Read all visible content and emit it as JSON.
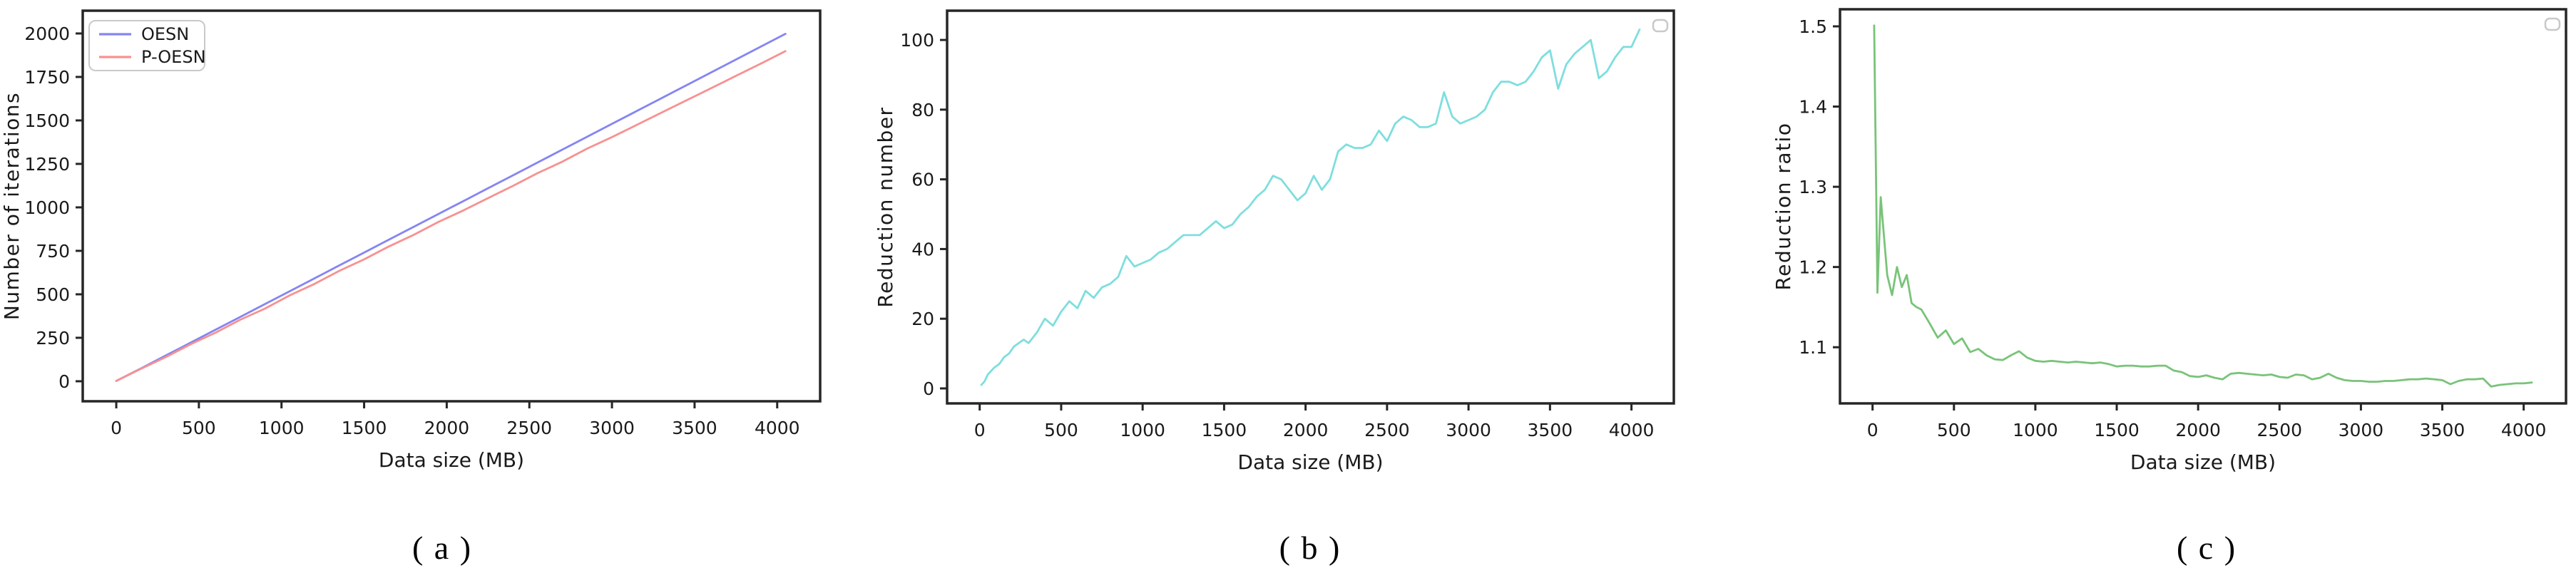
{
  "figure": {
    "background": "#ffffff",
    "captions": [
      {
        "label": "( a )"
      },
      {
        "label": "( b )"
      },
      {
        "label": "( c )"
      }
    ]
  },
  "colors": {
    "oesn_blue": "#8585f2",
    "p_oesn_red": "#f79191",
    "reduction_cyan": "#7fdede",
    "ratio_green": "#79c379",
    "axis": "#262626",
    "text": "#1a1a1a",
    "legend_border": "#c9c9c9"
  },
  "chart_data": [
    {
      "type": "line",
      "title": "",
      "xlabel": "Data size (MB)",
      "ylabel": "Number of iterations",
      "xlim": [
        -203,
        4260
      ],
      "ylim": [
        -115,
        2131
      ],
      "xticks": [
        0,
        500,
        1000,
        1500,
        2000,
        2500,
        3000,
        3500,
        4000
      ],
      "xtick_labels": [
        "0",
        "500",
        "1000",
        "1500",
        "2000",
        "2500",
        "3000",
        "3500",
        "4000"
      ],
      "yticks": [
        0,
        250,
        500,
        750,
        1000,
        1250,
        1500,
        1750,
        2000
      ],
      "ytick_labels": [
        "0",
        "250",
        "500",
        "750",
        "1000",
        "1250",
        "1500",
        "1750",
        "2000"
      ],
      "grid": false,
      "legend": {
        "visible": true,
        "empty": false,
        "position": "upper-left"
      },
      "x": [
        0,
        150,
        300,
        450,
        600,
        750,
        900,
        1050,
        1200,
        1350,
        1500,
        1650,
        1800,
        1950,
        2100,
        2250,
        2400,
        2550,
        2700,
        2850,
        3000,
        3150,
        3300,
        3450,
        3600,
        3750,
        3900,
        4050
      ],
      "series": [
        {
          "name": "OESN",
          "color": "#8585f2",
          "values": [
            2,
            74,
            148,
            222,
            296,
            370,
            444,
            518,
            592,
            666,
            740,
            814,
            888,
            962,
            1036,
            1110,
            1184,
            1258,
            1332,
            1406,
            1480,
            1554,
            1628,
            1702,
            1776,
            1850,
            1924,
            1998
          ]
        },
        {
          "name": "P-OESN",
          "color": "#f79191",
          "values": [
            2,
            72,
            139,
            213,
            279,
            354,
            418,
            494,
            560,
            635,
            701,
            775,
            842,
            916,
            982,
            1053,
            1123,
            1197,
            1263,
            1338,
            1404,
            1474,
            1545,
            1615,
            1685,
            1756,
            1826,
            1898
          ]
        }
      ]
    },
    {
      "type": "line",
      "title": "",
      "xlabel": "Data size (MB)",
      "ylabel": "Reduction number",
      "xlim": [
        -200,
        4260
      ],
      "ylim": [
        -4.3,
        108.4
      ],
      "xticks": [
        0,
        500,
        1000,
        1500,
        2000,
        2500,
        3000,
        3500,
        4000
      ],
      "xtick_labels": [
        "0",
        "500",
        "1000",
        "1500",
        "2000",
        "2500",
        "3000",
        "3500",
        "4000"
      ],
      "yticks": [
        0,
        20,
        40,
        60,
        80,
        100
      ],
      "ytick_labels": [
        "0",
        "20",
        "40",
        "60",
        "80",
        "100"
      ],
      "grid": false,
      "legend": {
        "visible": true,
        "empty": true,
        "position": "upper-right"
      },
      "x": [
        10,
        30,
        50,
        90,
        120,
        150,
        180,
        210,
        240,
        270,
        300,
        350,
        400,
        450,
        500,
        550,
        600,
        650,
        700,
        750,
        800,
        850,
        900,
        950,
        1000,
        1050,
        1100,
        1150,
        1200,
        1250,
        1300,
        1350,
        1400,
        1450,
        1500,
        1550,
        1600,
        1650,
        1700,
        1750,
        1800,
        1850,
        1900,
        1950,
        2000,
        2050,
        2100,
        2150,
        2200,
        2250,
        2300,
        2350,
        2400,
        2450,
        2500,
        2550,
        2600,
        2650,
        2700,
        2750,
        2800,
        2850,
        2900,
        2950,
        3000,
        3050,
        3100,
        3150,
        3200,
        3250,
        3300,
        3350,
        3400,
        3450,
        3500,
        3550,
        3600,
        3650,
        3700,
        3750,
        3800,
        3850,
        3900,
        3950,
        4000,
        4050
      ],
      "series": [
        {
          "name": "Reduction number",
          "color": "#7fdede",
          "values": [
            1,
            2,
            4,
            6,
            7,
            9,
            10,
            12,
            13,
            14,
            13,
            16,
            20,
            18,
            22,
            25,
            23,
            28,
            26,
            29,
            30,
            32,
            38,
            35,
            36,
            37,
            39,
            40,
            42,
            44,
            44,
            44,
            46,
            48,
            46,
            47,
            50,
            52,
            55,
            57,
            61,
            60,
            57,
            54,
            56,
            61,
            57,
            60,
            68,
            70,
            69,
            69,
            70,
            74,
            71,
            76,
            78,
            77,
            75,
            75,
            76,
            85,
            78,
            76,
            77,
            78,
            80,
            85,
            88,
            88,
            87,
            88,
            91,
            95,
            97,
            86,
            93,
            96,
            98,
            100,
            89,
            91,
            95,
            98,
            98,
            103
          ]
        }
      ]
    },
    {
      "type": "line",
      "title": "",
      "xlabel": "Data size (MB)",
      "ylabel": "Reduction ratio",
      "xlim": [
        -200,
        4260
      ],
      "ylim": [
        1.03,
        1.5213
      ],
      "xticks": [
        0,
        500,
        1000,
        1500,
        2000,
        2500,
        3000,
        3500,
        4000
      ],
      "xtick_labels": [
        "0",
        "500",
        "1000",
        "1500",
        "2000",
        "2500",
        "3000",
        "3500",
        "4000"
      ],
      "yticks": [
        1.1,
        1.2,
        1.3,
        1.4,
        1.5
      ],
      "ytick_labels": [
        "1.1",
        "1.2",
        "1.3",
        "1.4",
        "1.5"
      ],
      "grid": false,
      "legend": {
        "visible": true,
        "empty": true,
        "position": "upper-right"
      },
      "x": [
        10,
        30,
        50,
        90,
        120,
        150,
        180,
        210,
        240,
        270,
        300,
        350,
        400,
        450,
        500,
        550,
        600,
        650,
        700,
        750,
        800,
        850,
        900,
        950,
        1000,
        1050,
        1100,
        1150,
        1200,
        1250,
        1300,
        1350,
        1400,
        1450,
        1500,
        1550,
        1600,
        1650,
        1700,
        1750,
        1800,
        1850,
        1900,
        1950,
        2000,
        2050,
        2100,
        2150,
        2200,
        2250,
        2300,
        2350,
        2400,
        2450,
        2500,
        2550,
        2600,
        2650,
        2700,
        2750,
        2800,
        2850,
        2900,
        2950,
        3000,
        3050,
        3100,
        3150,
        3200,
        3250,
        3300,
        3350,
        3400,
        3450,
        3500,
        3550,
        3600,
        3650,
        3700,
        3750,
        3800,
        3850,
        3900,
        3950,
        4000,
        4050
      ],
      "series": [
        {
          "name": "Reduction ratio",
          "color": "#79c379",
          "values": [
            1.501,
            1.168,
            1.287,
            1.19,
            1.165,
            1.2,
            1.175,
            1.19,
            1.155,
            1.15,
            1.147,
            1.13,
            1.112,
            1.121,
            1.104,
            1.111,
            1.094,
            1.098,
            1.09,
            1.085,
            1.084,
            1.09,
            1.095,
            1.087,
            1.083,
            1.082,
            1.083,
            1.082,
            1.081,
            1.082,
            1.081,
            1.08,
            1.081,
            1.079,
            1.076,
            1.077,
            1.077,
            1.076,
            1.076,
            1.077,
            1.077,
            1.071,
            1.069,
            1.064,
            1.063,
            1.065,
            1.062,
            1.06,
            1.067,
            1.068,
            1.067,
            1.066,
            1.065,
            1.066,
            1.063,
            1.062,
            1.066,
            1.065,
            1.06,
            1.062,
            1.067,
            1.062,
            1.059,
            1.058,
            1.058,
            1.057,
            1.057,
            1.058,
            1.058,
            1.059,
            1.06,
            1.06,
            1.061,
            1.06,
            1.059,
            1.054,
            1.058,
            1.06,
            1.06,
            1.061,
            1.051,
            1.053,
            1.054,
            1.055,
            1.055,
            1.056
          ]
        }
      ]
    }
  ]
}
